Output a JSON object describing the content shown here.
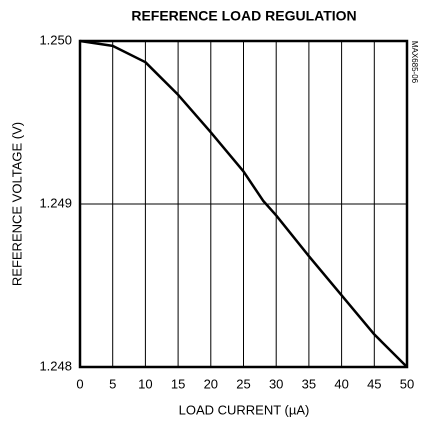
{
  "chart_data": {
    "type": "line",
    "title": "REFERENCE LOAD REGULATION",
    "xlabel": "LOAD CURRENT (µA)",
    "ylabel": "REFERENCE VOLTAGE (V)",
    "annotation": "MAX685-06",
    "x": [
      0,
      5,
      10,
      15,
      20,
      25,
      28,
      30,
      35,
      40,
      45,
      50
    ],
    "values": [
      1.25,
      1.24997,
      1.24987,
      1.24967,
      1.24944,
      1.2492,
      1.24902,
      1.24893,
      1.24868,
      1.24844,
      1.2482,
      1.248
    ],
    "color": "#000000",
    "xlim": [
      0,
      50
    ],
    "xticks": [
      0,
      5,
      10,
      15,
      20,
      25,
      30,
      35,
      40,
      45,
      50
    ],
    "ylim": [
      1.248,
      1.25
    ],
    "yticks": [
      {
        "value": 1.25,
        "label": "1.250"
      },
      1.249,
      1.248
    ],
    "grid": true
  }
}
